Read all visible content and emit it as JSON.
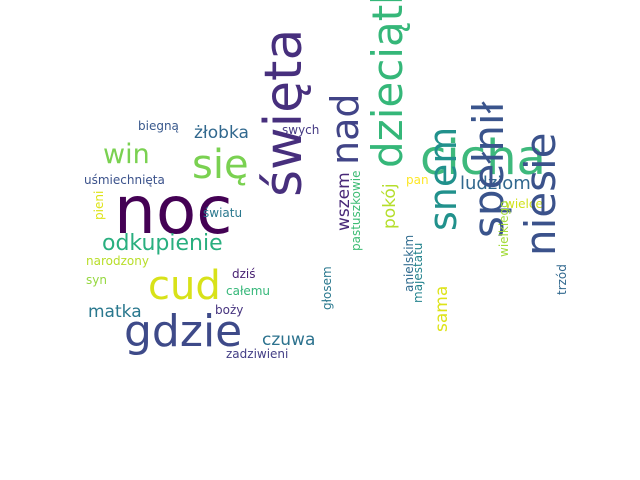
{
  "words": [
    {
      "id": "noc",
      "text": "noc",
      "color": "#440154"
    },
    {
      "id": "swieta",
      "text": "święta",
      "color": "#472f7d"
    },
    {
      "id": "cicha",
      "text": "cicha",
      "color": "#3eb97c"
    },
    {
      "id": "dzieciatka",
      "text": "dzieciątka",
      "color": "#35b779"
    },
    {
      "id": "niesie",
      "text": "niesie",
      "color": "#3b528b"
    },
    {
      "id": "spelnil",
      "text": "spełnił",
      "color": "#3a548c"
    },
    {
      "id": "cud",
      "text": "cud",
      "color": "#d8e219"
    },
    {
      "id": "gdzie",
      "text": "gdzie",
      "color": "#3e4a89"
    },
    {
      "id": "sie",
      "text": "się",
      "color": "#7ad151"
    },
    {
      "id": "nad",
      "text": "nad",
      "color": "#414487"
    },
    {
      "id": "snem",
      "text": "snem",
      "color": "#21918c"
    },
    {
      "id": "win",
      "text": "win",
      "color": "#7ad151"
    },
    {
      "id": "odkupienie",
      "text": "odkupienie",
      "color": "#29af7f"
    },
    {
      "id": "ludziom",
      "text": "ludziom",
      "color": "#31688e"
    },
    {
      "id": "matka",
      "text": "matka",
      "color": "#2a788e"
    },
    {
      "id": "czuwa",
      "text": "czuwa",
      "color": "#2c728e"
    },
    {
      "id": "wszem",
      "text": "wszem",
      "color": "#482878"
    },
    {
      "id": "pokoj",
      "text": "pokój",
      "color": "#b5de2b"
    },
    {
      "id": "sama",
      "text": "sama",
      "color": "#dde318"
    },
    {
      "id": "zlobka",
      "text": "żłobka",
      "color": "#31688e"
    },
    {
      "id": "usmiechnieta",
      "text": "uśmiechnięta",
      "color": "#3b528b"
    },
    {
      "id": "biegna",
      "text": "biegną",
      "color": "#38588c"
    },
    {
      "id": "swych",
      "text": "swych",
      "color": "#443983"
    },
    {
      "id": "pan",
      "text": "pan",
      "color": "#fde725"
    },
    {
      "id": "wielce",
      "text": "wielce",
      "color": "#d0e11c"
    },
    {
      "id": "swiatu",
      "text": "światu",
      "color": "#2a788e"
    },
    {
      "id": "narodzony",
      "text": "narodzony",
      "color": "#b8de29"
    },
    {
      "id": "syn",
      "text": "syn",
      "color": "#95d840"
    },
    {
      "id": "dzis",
      "text": "dziś",
      "color": "#482173"
    },
    {
      "id": "calemu",
      "text": "całemu",
      "color": "#35b779"
    },
    {
      "id": "bozy",
      "text": "boży",
      "color": "#46337e"
    },
    {
      "id": "zadziwieni",
      "text": "zadziwieni",
      "color": "#433e85"
    },
    {
      "id": "pieni",
      "text": "pieni",
      "color": "#dde318"
    },
    {
      "id": "glosem",
      "text": "głosem",
      "color": "#2a788e"
    },
    {
      "id": "pastuszkowie",
      "text": "pastuszkowie",
      "color": "#3dbc74"
    },
    {
      "id": "anielskim",
      "text": "anielskim",
      "color": "#2f6b8e"
    },
    {
      "id": "majestatu",
      "text": "majestatu",
      "color": "#25848e"
    },
    {
      "id": "wielkiego",
      "text": "wielkiego",
      "color": "#a2da37"
    },
    {
      "id": "trzod",
      "text": "trzód",
      "color": "#31688e"
    }
  ]
}
